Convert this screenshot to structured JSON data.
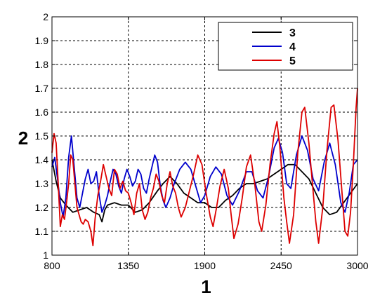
{
  "chart_data": {
    "type": "line",
    "xlabel": "1",
    "ylabel": "2",
    "xlim": [
      800,
      3000
    ],
    "ylim": [
      1,
      2
    ],
    "x_ticks": [
      "800",
      "1350",
      "1900",
      "2450",
      "3000"
    ],
    "y_ticks": [
      "1",
      "1.1",
      "1.2",
      "1.3",
      "1.4",
      "1.5",
      "1.6",
      "1.7",
      "1.8",
      "1.9",
      "2"
    ],
    "grid": true,
    "legend_position": "top-right",
    "series": [
      {
        "name": "3",
        "color": "#000000",
        "points": [
          [
            800,
            1.4
          ],
          [
            830,
            1.31
          ],
          [
            860,
            1.24
          ],
          [
            900,
            1.21
          ],
          [
            950,
            1.18
          ],
          [
            1000,
            1.19
          ],
          [
            1050,
            1.2
          ],
          [
            1100,
            1.18
          ],
          [
            1140,
            1.17
          ],
          [
            1160,
            1.14
          ],
          [
            1180,
            1.19
          ],
          [
            1200,
            1.21
          ],
          [
            1250,
            1.22
          ],
          [
            1300,
            1.21
          ],
          [
            1350,
            1.21
          ],
          [
            1400,
            1.18
          ],
          [
            1450,
            1.19
          ],
          [
            1500,
            1.22
          ],
          [
            1560,
            1.27
          ],
          [
            1600,
            1.3
          ],
          [
            1650,
            1.33
          ],
          [
            1700,
            1.3
          ],
          [
            1750,
            1.26
          ],
          [
            1800,
            1.24
          ],
          [
            1850,
            1.22
          ],
          [
            1900,
            1.22
          ],
          [
            1950,
            1.2
          ],
          [
            2000,
            1.2
          ],
          [
            2050,
            1.23
          ],
          [
            2100,
            1.25
          ],
          [
            2150,
            1.28
          ],
          [
            2200,
            1.3
          ],
          [
            2250,
            1.3
          ],
          [
            2300,
            1.31
          ],
          [
            2350,
            1.32
          ],
          [
            2400,
            1.34
          ],
          [
            2450,
            1.36
          ],
          [
            2500,
            1.38
          ],
          [
            2550,
            1.38
          ],
          [
            2600,
            1.35
          ],
          [
            2650,
            1.32
          ],
          [
            2700,
            1.26
          ],
          [
            2750,
            1.2
          ],
          [
            2800,
            1.17
          ],
          [
            2850,
            1.18
          ],
          [
            2900,
            1.22
          ],
          [
            2950,
            1.26
          ],
          [
            3000,
            1.3
          ]
        ]
      },
      {
        "name": "4",
        "color": "#0000cc",
        "points": [
          [
            800,
            1.37
          ],
          [
            820,
            1.41
          ],
          [
            840,
            1.32
          ],
          [
            860,
            1.22
          ],
          [
            880,
            1.16
          ],
          [
            900,
            1.24
          ],
          [
            920,
            1.41
          ],
          [
            940,
            1.5
          ],
          [
            960,
            1.37
          ],
          [
            980,
            1.24
          ],
          [
            1000,
            1.2
          ],
          [
            1020,
            1.26
          ],
          [
            1040,
            1.32
          ],
          [
            1060,
            1.36
          ],
          [
            1080,
            1.3
          ],
          [
            1100,
            1.31
          ],
          [
            1120,
            1.35
          ],
          [
            1140,
            1.25
          ],
          [
            1160,
            1.18
          ],
          [
            1180,
            1.21
          ],
          [
            1200,
            1.25
          ],
          [
            1220,
            1.31
          ],
          [
            1240,
            1.36
          ],
          [
            1260,
            1.34
          ],
          [
            1280,
            1.29
          ],
          [
            1300,
            1.26
          ],
          [
            1320,
            1.32
          ],
          [
            1340,
            1.36
          ],
          [
            1360,
            1.33
          ],
          [
            1380,
            1.29
          ],
          [
            1400,
            1.31
          ],
          [
            1420,
            1.36
          ],
          [
            1440,
            1.34
          ],
          [
            1460,
            1.28
          ],
          [
            1480,
            1.26
          ],
          [
            1500,
            1.32
          ],
          [
            1520,
            1.37
          ],
          [
            1540,
            1.42
          ],
          [
            1560,
            1.39
          ],
          [
            1580,
            1.29
          ],
          [
            1600,
            1.23
          ],
          [
            1620,
            1.2
          ],
          [
            1650,
            1.24
          ],
          [
            1680,
            1.3
          ],
          [
            1720,
            1.36
          ],
          [
            1760,
            1.39
          ],
          [
            1800,
            1.36
          ],
          [
            1840,
            1.28
          ],
          [
            1870,
            1.22
          ],
          [
            1900,
            1.25
          ],
          [
            1940,
            1.33
          ],
          [
            1980,
            1.37
          ],
          [
            2020,
            1.34
          ],
          [
            2060,
            1.25
          ],
          [
            2100,
            1.21
          ],
          [
            2150,
            1.27
          ],
          [
            2200,
            1.35
          ],
          [
            2240,
            1.35
          ],
          [
            2280,
            1.27
          ],
          [
            2320,
            1.24
          ],
          [
            2360,
            1.33
          ],
          [
            2400,
            1.45
          ],
          [
            2430,
            1.49
          ],
          [
            2460,
            1.43
          ],
          [
            2490,
            1.3
          ],
          [
            2520,
            1.28
          ],
          [
            2560,
            1.42
          ],
          [
            2600,
            1.5
          ],
          [
            2640,
            1.44
          ],
          [
            2680,
            1.32
          ],
          [
            2720,
            1.27
          ],
          [
            2760,
            1.39
          ],
          [
            2800,
            1.47
          ],
          [
            2840,
            1.38
          ],
          [
            2880,
            1.22
          ],
          [
            2910,
            1.18
          ],
          [
            2940,
            1.26
          ],
          [
            2970,
            1.38
          ],
          [
            3000,
            1.4
          ]
        ]
      },
      {
        "name": "5",
        "color": "#dd0000",
        "points": [
          [
            800,
            1.43
          ],
          [
            815,
            1.51
          ],
          [
            830,
            1.47
          ],
          [
            845,
            1.3
          ],
          [
            860,
            1.12
          ],
          [
            875,
            1.17
          ],
          [
            890,
            1.15
          ],
          [
            905,
            1.22
          ],
          [
            920,
            1.3
          ],
          [
            935,
            1.42
          ],
          [
            950,
            1.4
          ],
          [
            965,
            1.3
          ],
          [
            980,
            1.2
          ],
          [
            995,
            1.17
          ],
          [
            1010,
            1.14
          ],
          [
            1025,
            1.13
          ],
          [
            1040,
            1.15
          ],
          [
            1060,
            1.14
          ],
          [
            1080,
            1.1
          ],
          [
            1095,
            1.04
          ],
          [
            1110,
            1.15
          ],
          [
            1130,
            1.25
          ],
          [
            1150,
            1.31
          ],
          [
            1170,
            1.38
          ],
          [
            1190,
            1.33
          ],
          [
            1210,
            1.28
          ],
          [
            1230,
            1.25
          ],
          [
            1250,
            1.36
          ],
          [
            1270,
            1.34
          ],
          [
            1290,
            1.28
          ],
          [
            1310,
            1.31
          ],
          [
            1330,
            1.27
          ],
          [
            1350,
            1.26
          ],
          [
            1370,
            1.22
          ],
          [
            1390,
            1.17
          ],
          [
            1410,
            1.26
          ],
          [
            1430,
            1.3
          ],
          [
            1450,
            1.19
          ],
          [
            1470,
            1.15
          ],
          [
            1490,
            1.18
          ],
          [
            1510,
            1.24
          ],
          [
            1530,
            1.28
          ],
          [
            1550,
            1.34
          ],
          [
            1570,
            1.31
          ],
          [
            1590,
            1.25
          ],
          [
            1610,
            1.22
          ],
          [
            1630,
            1.3
          ],
          [
            1650,
            1.35
          ],
          [
            1670,
            1.29
          ],
          [
            1690,
            1.26
          ],
          [
            1710,
            1.2
          ],
          [
            1730,
            1.16
          ],
          [
            1760,
            1.2
          ],
          [
            1790,
            1.27
          ],
          [
            1820,
            1.34
          ],
          [
            1850,
            1.42
          ],
          [
            1880,
            1.38
          ],
          [
            1910,
            1.26
          ],
          [
            1940,
            1.16
          ],
          [
            1960,
            1.12
          ],
          [
            1985,
            1.2
          ],
          [
            2010,
            1.29
          ],
          [
            2040,
            1.36
          ],
          [
            2070,
            1.28
          ],
          [
            2090,
            1.17
          ],
          [
            2110,
            1.07
          ],
          [
            2140,
            1.13
          ],
          [
            2170,
            1.24
          ],
          [
            2200,
            1.37
          ],
          [
            2230,
            1.42
          ],
          [
            2260,
            1.3
          ],
          [
            2290,
            1.14
          ],
          [
            2310,
            1.1
          ],
          [
            2340,
            1.21
          ],
          [
            2370,
            1.38
          ],
          [
            2400,
            1.51
          ],
          [
            2420,
            1.56
          ],
          [
            2440,
            1.46
          ],
          [
            2470,
            1.24
          ],
          [
            2490,
            1.14
          ],
          [
            2510,
            1.05
          ],
          [
            2540,
            1.17
          ],
          [
            2570,
            1.43
          ],
          [
            2600,
            1.6
          ],
          [
            2620,
            1.62
          ],
          [
            2650,
            1.47
          ],
          [
            2680,
            1.27
          ],
          [
            2700,
            1.14
          ],
          [
            2720,
            1.05
          ],
          [
            2750,
            1.2
          ],
          [
            2780,
            1.44
          ],
          [
            2810,
            1.62
          ],
          [
            2830,
            1.63
          ],
          [
            2860,
            1.48
          ],
          [
            2890,
            1.25
          ],
          [
            2910,
            1.1
          ],
          [
            2930,
            1.08
          ],
          [
            2950,
            1.18
          ],
          [
            2970,
            1.38
          ],
          [
            2990,
            1.62
          ],
          [
            3000,
            1.7
          ]
        ]
      }
    ]
  }
}
